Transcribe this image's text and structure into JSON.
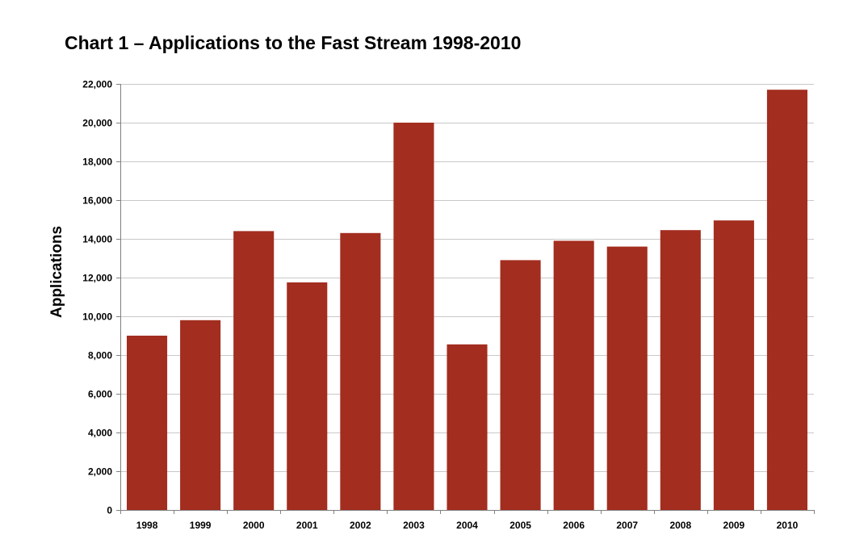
{
  "chart_data": {
    "type": "bar",
    "title": "Chart 1 – Applications to the Fast Stream 1998-2010",
    "xlabel": "",
    "ylabel": "Applications",
    "categories": [
      "1998",
      "1999",
      "2000",
      "2001",
      "2002",
      "2003",
      "2004",
      "2005",
      "2006",
      "2007",
      "2008",
      "2009",
      "2010"
    ],
    "values": [
      9000,
      9800,
      14400,
      11750,
      14300,
      20000,
      8550,
      12900,
      13900,
      13600,
      14450,
      14950,
      21700
    ],
    "ylim": [
      0,
      22000
    ],
    "yticks": [
      0,
      2000,
      4000,
      6000,
      8000,
      10000,
      12000,
      14000,
      16000,
      18000,
      20000,
      22000
    ],
    "ytick_labels": [
      "0",
      "2,000",
      "4,000",
      "6,000",
      "8,000",
      "10,000",
      "12,000",
      "14,000",
      "16,000",
      "18,000",
      "20,000",
      "22,000"
    ],
    "grid": true,
    "legend": "none",
    "colors": {
      "bar": "#a32d1f",
      "grid": "#c8c8c8",
      "axis": "#808080"
    }
  }
}
